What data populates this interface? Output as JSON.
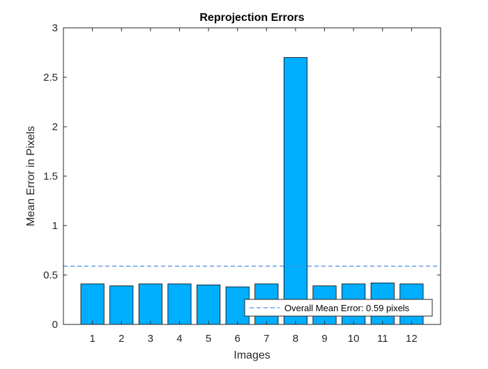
{
  "chart_data": {
    "type": "bar",
    "title": "Reprojection Errors",
    "xlabel": "Images",
    "ylabel": "Mean Error in Pixels",
    "categories": [
      "1",
      "2",
      "3",
      "4",
      "5",
      "6",
      "7",
      "8",
      "9",
      "10",
      "11",
      "12"
    ],
    "values": [
      0.41,
      0.39,
      0.41,
      0.41,
      0.4,
      0.38,
      0.41,
      2.7,
      0.39,
      0.41,
      0.42,
      0.41
    ],
    "ylim": [
      0,
      3
    ],
    "xlim": [
      0,
      13
    ],
    "yticks": [
      "0",
      "0.5",
      "1",
      "1.5",
      "2",
      "2.5",
      "3"
    ],
    "reference_line": {
      "value": 0.59,
      "style": "dashed",
      "label": "Overall Mean Error: 0.59 pixels"
    },
    "bar_color": "#00aeff",
    "bar_edge_color": "#000000",
    "reference_line_color": "#4a90d9",
    "grid": false,
    "legend_position": "bottom-right"
  }
}
